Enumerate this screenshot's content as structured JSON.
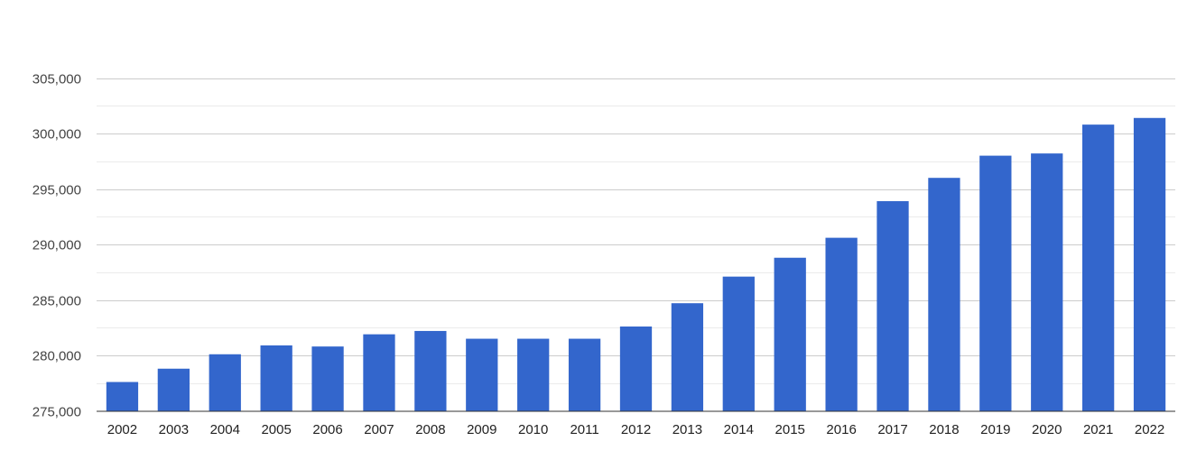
{
  "chart_data": {
    "type": "bar",
    "categories": [
      "2002",
      "2003",
      "2004",
      "2005",
      "2006",
      "2007",
      "2008",
      "2009",
      "2010",
      "2011",
      "2012",
      "2013",
      "2014",
      "2015",
      "2016",
      "2017",
      "2018",
      "2019",
      "2020",
      "2021",
      "2022"
    ],
    "values": [
      277600,
      278800,
      280100,
      280900,
      280800,
      281900,
      282200,
      281500,
      281500,
      281500,
      282600,
      284700,
      287100,
      288800,
      290600,
      293900,
      296000,
      298000,
      298200,
      300800,
      301400
    ],
    "title": "",
    "xlabel": "",
    "ylabel": "",
    "ylim": [
      275000,
      305000
    ],
    "y_ticks": [
      275000,
      280000,
      285000,
      290000,
      295000,
      300000,
      305000
    ],
    "y_tick_labels": [
      "275,000",
      "280,000",
      "285,000",
      "290,000",
      "295,000",
      "300,000",
      "305,000"
    ],
    "grid": true,
    "minor_grid": true,
    "bar_color": "#3366cc",
    "grid_color": "#cccccc",
    "minor_grid_color": "#ebebeb"
  }
}
